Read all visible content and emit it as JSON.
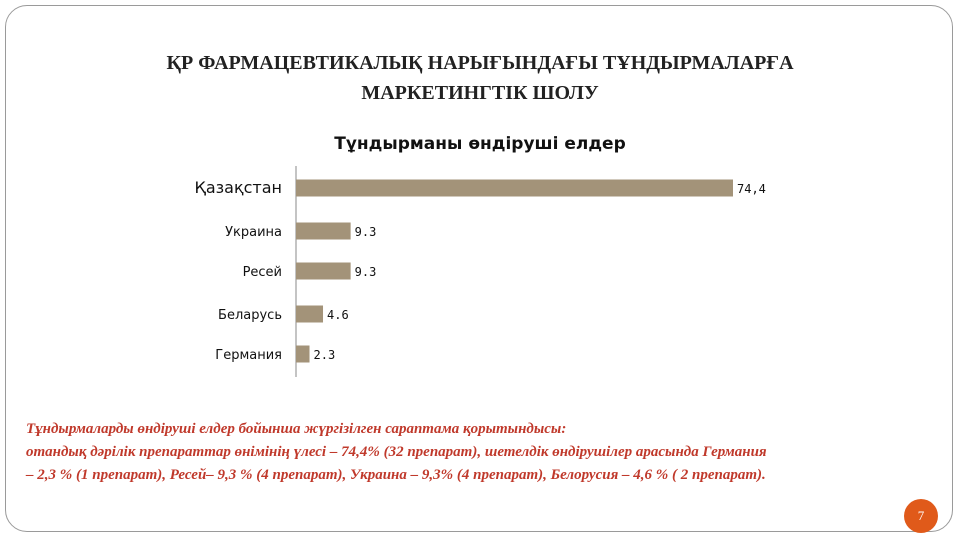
{
  "slide": {
    "title_line1": "ҚР ФАРМАЦЕВТИКАЛЫҚ НАРЫҒЫНДАҒЫ  ТҰНДЫРМАЛАРҒА",
    "title_line2": "МАРКЕТИНГТІК ШОЛУ",
    "caption_line1": "Тұндырмаларды өндіруші елдер бойынша жүргізілген сараптама қорытындысы:",
    "caption_line2": "отандық дәрілік препараттар өнімінің үлесі – 74,4% (32 препарат),  шетелдік өндірушілер арасында  Германия",
    "caption_line3": "– 2,3 %  (1 препарат),  Ресей– 9,3 % (4 препарат), Украина – 9,3% (4 препарат),  Белорусия – 4,6 % ( 2 препарат).",
    "page_number": "7"
  },
  "colors": {
    "bar": "#a39379",
    "caption": "#c0392b",
    "page_badge": "#e05a1a"
  },
  "chart_data": {
    "type": "bar",
    "orientation": "horizontal",
    "title": "Тұндырманы өндіруші елдер",
    "categories": [
      "Қазақстан",
      "Украина",
      "Ресей",
      "Беларусь",
      "Германия"
    ],
    "values": [
      74.4,
      9.3,
      9.3,
      4.6,
      2.3
    ],
    "value_labels": [
      "74,4",
      "9.3",
      "9.3",
      "4.6",
      "2.3"
    ],
    "xlabel": "",
    "ylabel": "",
    "xlim": [
      0,
      74.4
    ],
    "grid": false,
    "legend": "none"
  }
}
